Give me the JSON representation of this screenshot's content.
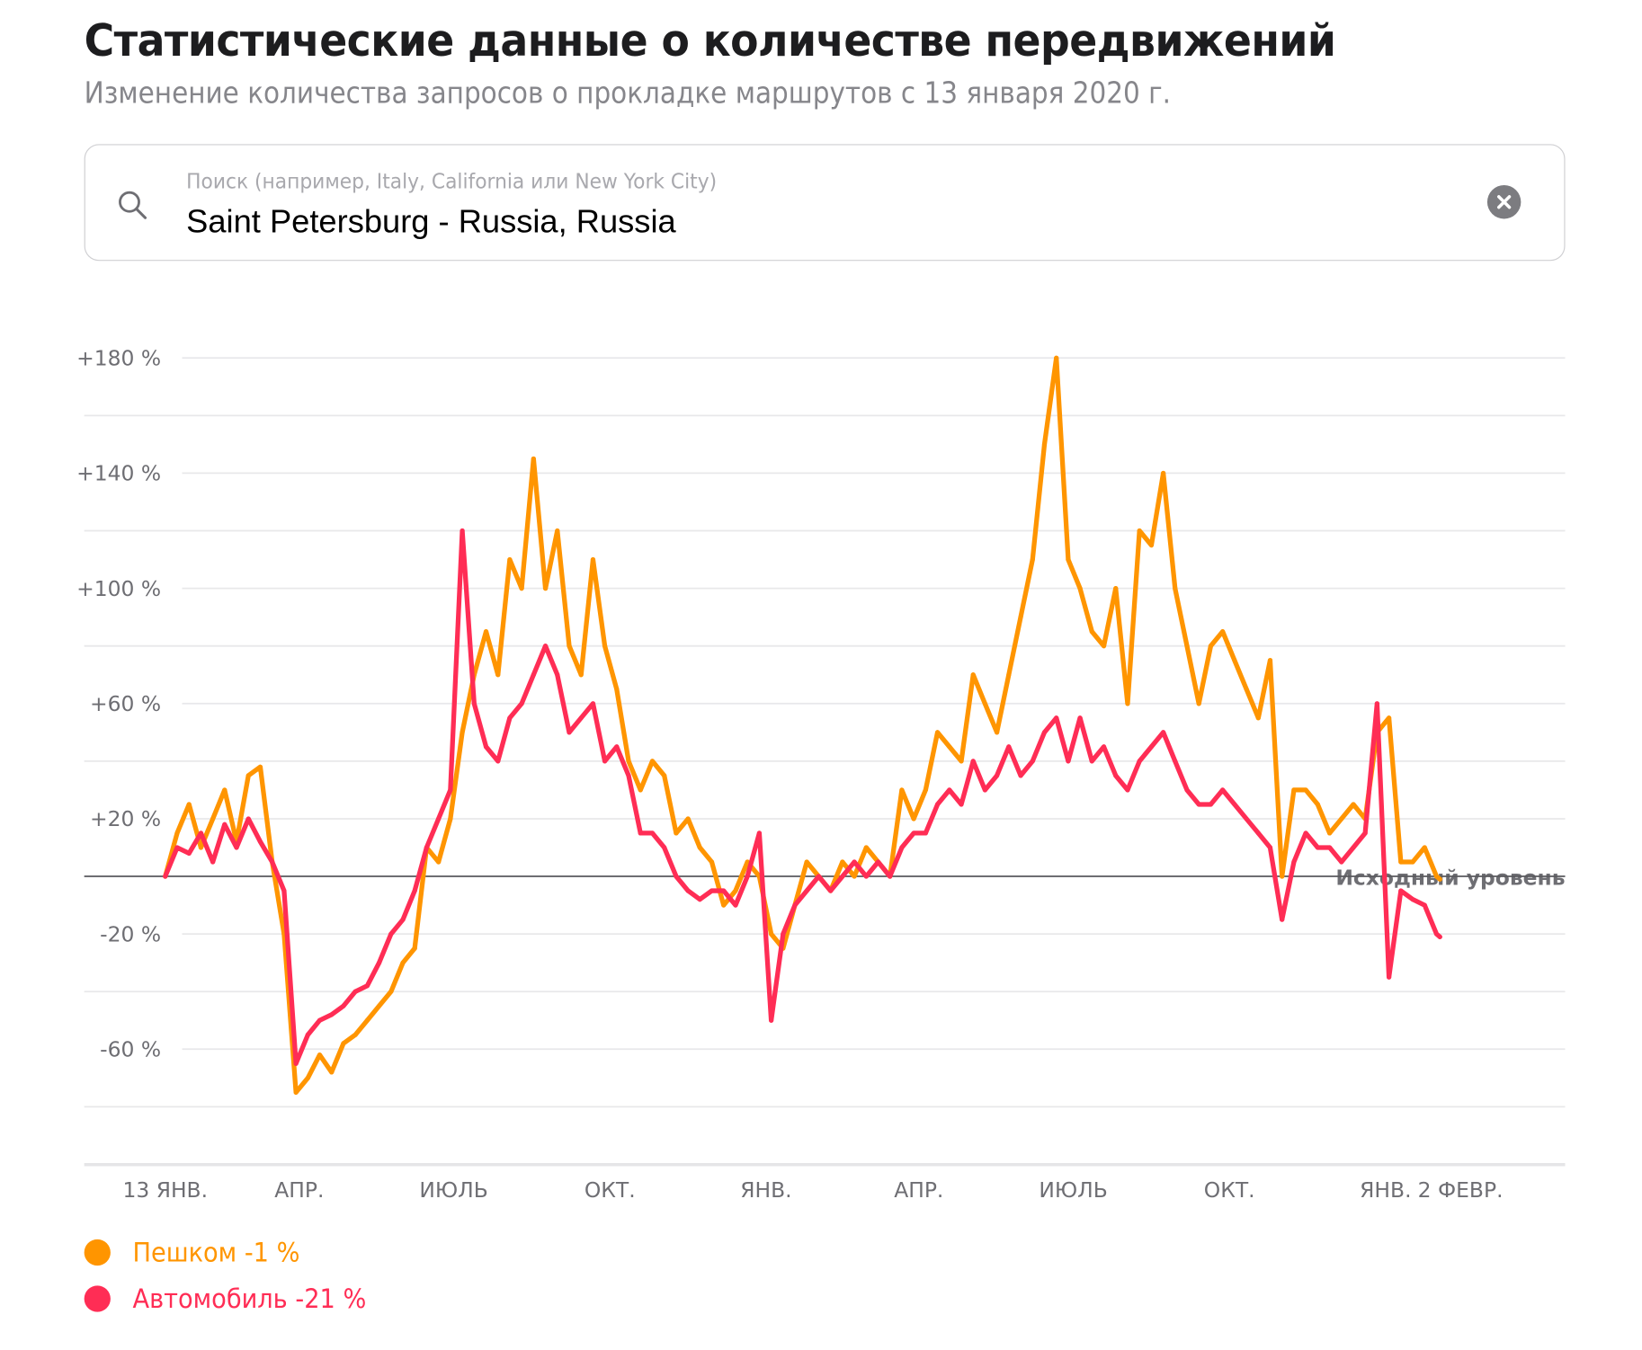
{
  "header": {
    "title": "Статистические данные о количестве передвижений",
    "subtitle": "Изменение количества запросов о прокладке маршрутов с 13 января 2020 г."
  },
  "search": {
    "placeholder": "Поиск (например, Italy, California или New York City)",
    "value": "Saint Petersburg - Russia, Russia",
    "icon": "search-icon",
    "clear_icon": "clear-circle-x-icon"
  },
  "chart_data": {
    "type": "line",
    "title": "",
    "xlabel": "",
    "ylabel": "",
    "ylim": [
      -80,
      180
    ],
    "y_ticks": [
      180,
      140,
      100,
      60,
      20,
      -20,
      -60
    ],
    "y_tick_labels": [
      "+180 %",
      "+140 %",
      "+100 %",
      "+60 %",
      "+20 %",
      "-20 %",
      "-60 %"
    ],
    "y_grid_step": 20,
    "grid": true,
    "baseline": {
      "value": 0,
      "label": "Исходный уровень"
    },
    "x_ticks": [
      {
        "date": "2020-01-13",
        "label": "13 ЯНВ."
      },
      {
        "date": "2020-04-01",
        "label": "АПР."
      },
      {
        "date": "2020-07-01",
        "label": "ИЮЛЬ"
      },
      {
        "date": "2020-10-01",
        "label": "ОКТ."
      },
      {
        "date": "2021-01-01",
        "label": "ЯНВ."
      },
      {
        "date": "2021-04-01",
        "label": "АПР."
      },
      {
        "date": "2021-07-01",
        "label": "ИЮЛЬ"
      },
      {
        "date": "2021-10-01",
        "label": "ОКТ."
      },
      {
        "date": "2022-01-01",
        "label": "ЯНВ."
      },
      {
        "date": "2022-02-02",
        "label": "2 ФЕВР."
      }
    ],
    "x": [
      "2020-01-13",
      "2020-01-20",
      "2020-01-27",
      "2020-02-03",
      "2020-02-10",
      "2020-02-17",
      "2020-02-24",
      "2020-03-02",
      "2020-03-09",
      "2020-03-16",
      "2020-03-23",
      "2020-03-30",
      "2020-04-06",
      "2020-04-13",
      "2020-04-20",
      "2020-04-27",
      "2020-05-04",
      "2020-05-11",
      "2020-05-18",
      "2020-05-25",
      "2020-06-01",
      "2020-06-08",
      "2020-06-15",
      "2020-06-22",
      "2020-06-29",
      "2020-07-06",
      "2020-07-13",
      "2020-07-20",
      "2020-07-27",
      "2020-08-03",
      "2020-08-10",
      "2020-08-17",
      "2020-08-24",
      "2020-08-31",
      "2020-09-07",
      "2020-09-14",
      "2020-09-21",
      "2020-09-28",
      "2020-10-05",
      "2020-10-12",
      "2020-10-19",
      "2020-10-26",
      "2020-11-02",
      "2020-11-09",
      "2020-11-16",
      "2020-11-23",
      "2020-11-30",
      "2020-12-07",
      "2020-12-14",
      "2020-12-21",
      "2020-12-28",
      "2021-01-04",
      "2021-01-11",
      "2021-01-18",
      "2021-01-25",
      "2021-02-01",
      "2021-02-08",
      "2021-02-15",
      "2021-02-22",
      "2021-03-01",
      "2021-03-08",
      "2021-03-15",
      "2021-03-22",
      "2021-03-29",
      "2021-04-05",
      "2021-04-12",
      "2021-04-19",
      "2021-04-26",
      "2021-05-03",
      "2021-05-10",
      "2021-05-17",
      "2021-05-24",
      "2021-05-31",
      "2021-06-07",
      "2021-06-14",
      "2021-06-21",
      "2021-06-28",
      "2021-07-05",
      "2021-07-12",
      "2021-07-19",
      "2021-07-26",
      "2021-08-02",
      "2021-08-09",
      "2021-08-16",
      "2021-08-23",
      "2021-08-30",
      "2021-09-06",
      "2021-09-13",
      "2021-09-20",
      "2021-09-27",
      "2021-10-04",
      "2021-10-11",
      "2021-10-18",
      "2021-10-25",
      "2021-11-01",
      "2021-11-08",
      "2021-11-15",
      "2021-11-22",
      "2021-11-29",
      "2021-12-06",
      "2021-12-13",
      "2021-12-20",
      "2021-12-27",
      "2022-01-03",
      "2022-01-10",
      "2022-01-17",
      "2022-01-24",
      "2022-01-31",
      "2022-02-02"
    ],
    "series": [
      {
        "name": "Пешком",
        "color": "#FF9500",
        "values": [
          0,
          15,
          25,
          10,
          20,
          30,
          12,
          35,
          38,
          5,
          -20,
          -75,
          -70,
          -62,
          -68,
          -58,
          -55,
          -50,
          -45,
          -40,
          -30,
          -25,
          10,
          5,
          20,
          50,
          70,
          85,
          70,
          110,
          100,
          145,
          100,
          120,
          80,
          70,
          110,
          80,
          65,
          40,
          30,
          40,
          35,
          15,
          20,
          10,
          5,
          -10,
          -5,
          5,
          0,
          -20,
          -25,
          -10,
          5,
          0,
          -5,
          5,
          0,
          10,
          5,
          0,
          30,
          20,
          30,
          50,
          45,
          40,
          70,
          60,
          50,
          70,
          90,
          110,
          150,
          180,
          110,
          100,
          85,
          80,
          100,
          60,
          120,
          115,
          140,
          100,
          80,
          60,
          80,
          85,
          75,
          65,
          55,
          75,
          0,
          30,
          30,
          25,
          15,
          20,
          25,
          20,
          50,
          55,
          5,
          5,
          10,
          0,
          -1
        ]
      },
      {
        "name": "Автомобиль",
        "color": "#FF2D55",
        "values": [
          0,
          10,
          8,
          15,
          5,
          18,
          10,
          20,
          12,
          5,
          -5,
          -65,
          -55,
          -50,
          -48,
          -45,
          -40,
          -38,
          -30,
          -20,
          -15,
          -5,
          10,
          20,
          30,
          120,
          60,
          45,
          40,
          55,
          60,
          70,
          80,
          70,
          50,
          55,
          60,
          40,
          45,
          35,
          15,
          15,
          10,
          0,
          -5,
          -8,
          -5,
          -5,
          -10,
          0,
          15,
          -50,
          -20,
          -10,
          -5,
          0,
          -5,
          0,
          5,
          0,
          5,
          0,
          10,
          15,
          15,
          25,
          30,
          25,
          40,
          30,
          35,
          45,
          35,
          40,
          50,
          55,
          40,
          55,
          40,
          45,
          35,
          30,
          40,
          45,
          50,
          40,
          30,
          25,
          25,
          30,
          25,
          20,
          15,
          10,
          -15,
          5,
          15,
          10,
          10,
          5,
          10,
          15,
          60,
          -35,
          -5,
          -8,
          -10,
          -20,
          -21
        ]
      }
    ],
    "legend": [
      {
        "label": "Пешком -1 %",
        "color": "#FF9500"
      },
      {
        "label": "Автомобиль -21 %",
        "color": "#FF2D55"
      }
    ],
    "legend_position": "bottom-left"
  }
}
